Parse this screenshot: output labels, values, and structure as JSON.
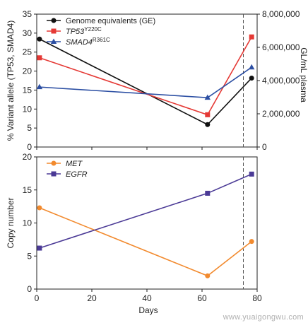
{
  "chart_data": [
    {
      "type": "line",
      "xlabel": "",
      "ylabel": "% Variant allele (TP53, SMAD4)",
      "ylabel_right": "GL/mL plasma",
      "xlim": [
        0,
        80
      ],
      "ylim": [
        0,
        35
      ],
      "ylim_right": [
        0,
        8000000
      ],
      "yticks": [
        "0",
        "5",
        "10",
        "15",
        "20",
        "25",
        "30",
        "35"
      ],
      "yticks_right": [
        "0",
        "2,000,000",
        "4,000,000",
        "6,000,000",
        "8,000,000"
      ],
      "legend_position": "top-left",
      "series": [
        {
          "name": "Genome equivalents (GE)",
          "axis": "right",
          "color": "#111111",
          "marker": "circle",
          "x": [
            1,
            62,
            78
          ],
          "y": [
            6500000,
            1350000,
            4150000
          ]
        },
        {
          "name": "TP53",
          "name_sup": "Y220C",
          "axis": "left",
          "color": "#e53935",
          "marker": "square",
          "x": [
            1,
            62,
            78
          ],
          "y": [
            23.5,
            8.5,
            29
          ]
        },
        {
          "name": "SMAD4",
          "name_sup": "R361C",
          "axis": "left",
          "color": "#2c4fa3",
          "marker": "triangle",
          "x": [
            1,
            62,
            78
          ],
          "y": [
            15.8,
            13,
            21
          ]
        }
      ],
      "vline_x": 75
    },
    {
      "type": "line",
      "xlabel": "Days",
      "ylabel": "Copy number",
      "xlim": [
        0,
        80
      ],
      "ylim": [
        0,
        20
      ],
      "xticks": [
        "0",
        "20",
        "40",
        "60",
        "80"
      ],
      "yticks": [
        "0",
        "5",
        "10",
        "15",
        "20"
      ],
      "legend_position": "top-left",
      "series": [
        {
          "name": "MET",
          "color": "#f28a2e",
          "marker": "circle",
          "x": [
            1,
            62,
            78
          ],
          "y": [
            12.3,
            2,
            7.2
          ]
        },
        {
          "name": "EGFR",
          "color": "#4b3a96",
          "marker": "square",
          "x": [
            1,
            62,
            78
          ],
          "y": [
            6.2,
            14.5,
            17.4
          ]
        }
      ],
      "vline_x": 75
    }
  ],
  "watermark": "www.yuaigongwu.com"
}
